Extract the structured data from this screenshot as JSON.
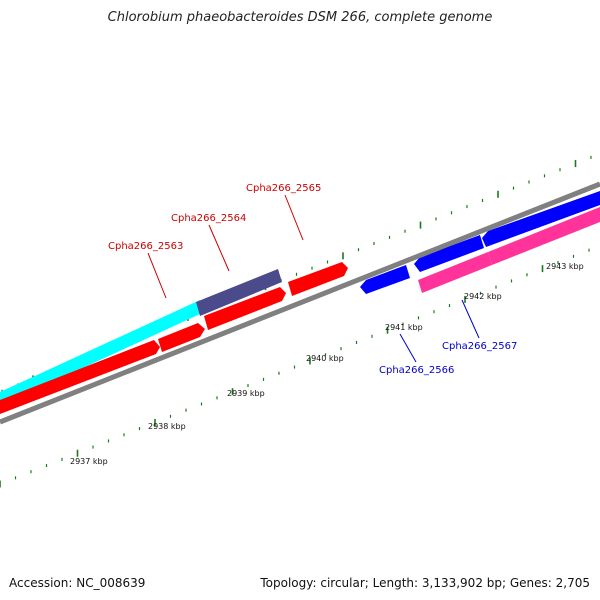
{
  "title": "Chlorobium phaeobacteroides DSM 266, complete genome",
  "footer": {
    "accession": "Accession: NC_008639",
    "summary": "Topology: circular; Length: 3,133,902 bp; Genes: 2,705"
  },
  "colors": {
    "backbone": "#808080",
    "tick_major": "#1a7a1a",
    "tick_minor": "#1a7a1a",
    "forward_gene": "#ff0000",
    "reverse_gene": "#0000ff",
    "cds_reverse": "#ff3399",
    "cds_forward": "#00ffff",
    "cds_other": "#4b4b8c",
    "label_forward": "#cc0000",
    "label_reverse": "#0000cc"
  },
  "ticks": [
    {
      "label": "2937 kbp"
    },
    {
      "label": "2938 kbp"
    },
    {
      "label": "2939 kbp"
    },
    {
      "label": "2940 kbp"
    },
    {
      "label": "2941 kbp"
    },
    {
      "label": "2942 kbp"
    },
    {
      "label": "2943 kbp"
    }
  ],
  "genes": [
    {
      "label": "Cpha266_2563",
      "strand": "forward"
    },
    {
      "label": "Cpha266_2564",
      "strand": "forward"
    },
    {
      "label": "Cpha266_2565",
      "strand": "forward"
    },
    {
      "label": "Cpha266_2566",
      "strand": "reverse"
    },
    {
      "label": "Cpha266_2567",
      "strand": "reverse"
    }
  ]
}
